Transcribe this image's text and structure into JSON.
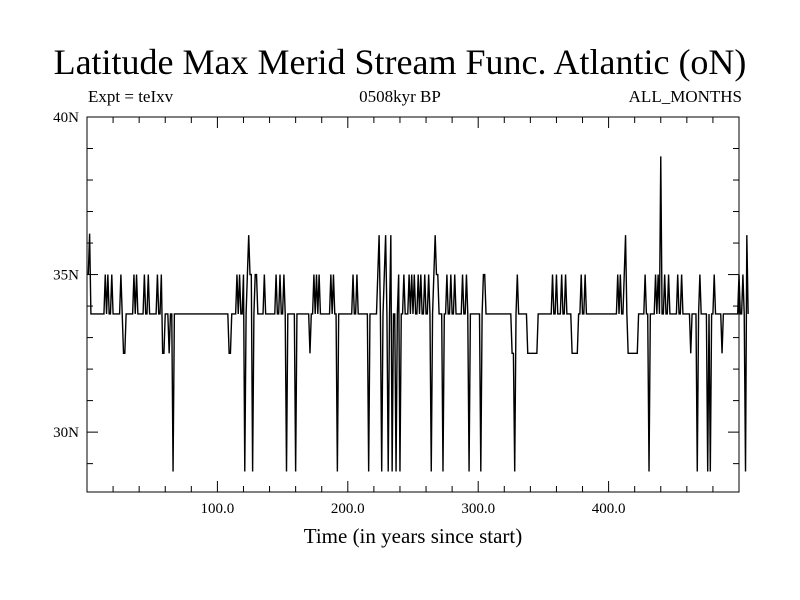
{
  "chart_data": {
    "type": "line",
    "title": "Latitude Max Merid Stream Func. Atlantic (oN)",
    "subtitle_left": "Expt = teIxv",
    "subtitle_center": "0508kyr BP",
    "subtitle_right": "ALL_MONTHS",
    "xlabel": "Time (in years since start)",
    "ylabel": "",
    "xlim": [
      0,
      500
    ],
    "ylim": [
      28.1,
      40
    ],
    "x_ticks": [
      100,
      200,
      300,
      400
    ],
    "x_tick_labels": [
      "100.0",
      "200.0",
      "300.0",
      "400.0"
    ],
    "y_ticks": [
      30,
      35,
      40
    ],
    "y_tick_labels": [
      "30N",
      "35N",
      "40N"
    ],
    "grid": false,
    "series": [
      {
        "color": "#000000",
        "x0": 1,
        "dx": 1,
        "values": [
          35.0,
          36.3,
          33.75,
          33.75,
          33.75,
          33.75,
          33.75,
          33.75,
          33.75,
          33.75,
          33.75,
          33.75,
          33.75,
          35.0,
          33.75,
          35.0,
          33.75,
          33.75,
          35.0,
          33.75,
          33.75,
          33.75,
          33.75,
          33.75,
          33.75,
          35.0,
          33.75,
          32.5,
          32.5,
          33.75,
          33.75,
          33.75,
          33.75,
          33.75,
          33.75,
          35.0,
          33.75,
          35.0,
          33.75,
          33.75,
          33.75,
          33.75,
          33.75,
          35.0,
          33.75,
          33.75,
          35.0,
          33.75,
          33.75,
          33.75,
          33.75,
          33.75,
          33.75,
          35.0,
          33.75,
          33.75,
          35.0,
          32.5,
          32.5,
          33.75,
          33.75,
          33.75,
          32.5,
          33.75,
          33.75,
          28.75,
          33.75,
          33.75,
          33.75,
          33.75,
          33.75,
          33.75,
          33.75,
          33.75,
          33.75,
          33.75,
          33.75,
          33.75,
          33.75,
          33.75,
          33.75,
          33.75,
          33.75,
          33.75,
          33.75,
          33.75,
          33.75,
          33.75,
          33.75,
          33.75,
          33.75,
          33.75,
          33.75,
          33.75,
          33.75,
          33.75,
          33.75,
          33.75,
          33.75,
          33.75,
          33.75,
          33.75,
          33.75,
          33.75,
          33.75,
          33.75,
          33.75,
          33.75,
          32.5,
          32.5,
          33.75,
          33.75,
          33.75,
          33.75,
          35.0,
          33.75,
          35.0,
          33.75,
          33.75,
          35.0,
          28.75,
          33.75,
          35.0,
          36.25,
          35.0,
          35.0,
          28.75,
          33.75,
          35.0,
          35.0,
          33.75,
          33.75,
          33.75,
          33.75,
          33.75,
          35.0,
          33.75,
          33.75,
          33.75,
          33.75,
          33.75,
          33.75,
          33.75,
          33.75,
          35.0,
          33.75,
          33.75,
          35.0,
          33.75,
          33.75,
          35.0,
          33.75,
          28.75,
          33.75,
          33.75,
          33.75,
          33.75,
          33.75,
          33.75,
          28.75,
          33.75,
          33.75,
          33.75,
          33.75,
          33.75,
          33.75,
          33.75,
          33.75,
          33.75,
          33.75,
          32.5,
          33.75,
          33.75,
          35.0,
          33.75,
          35.0,
          33.75,
          35.0,
          33.75,
          33.75,
          33.75,
          33.75,
          33.75,
          33.75,
          33.75,
          33.75,
          35.0,
          33.75,
          35.0,
          33.75,
          33.75,
          28.75,
          33.75,
          33.75,
          33.75,
          33.75,
          33.75,
          33.75,
          33.75,
          33.75,
          33.75,
          33.75,
          33.75,
          35.0,
          33.75,
          33.75,
          35.0,
          33.75,
          33.75,
          33.75,
          33.75,
          33.75,
          33.75,
          33.75,
          33.75,
          28.75,
          33.75,
          33.75,
          33.75,
          33.75,
          33.75,
          33.75,
          35.0,
          36.25,
          33.75,
          28.75,
          33.75,
          35.0,
          36.25,
          33.75,
          28.75,
          33.75,
          36.25,
          28.75,
          33.75,
          33.75,
          28.75,
          33.75,
          35.0,
          28.75,
          33.75,
          33.75,
          35.0,
          33.75,
          33.75,
          33.75,
          35.0,
          33.75,
          35.0,
          33.75,
          35.0,
          33.75,
          33.75,
          35.0,
          33.75,
          35.0,
          33.75,
          33.75,
          35.0,
          33.75,
          33.75,
          35.0,
          33.75,
          28.75,
          33.75,
          35.0,
          36.25,
          35.0,
          35.0,
          33.75,
          33.75,
          33.75,
          28.75,
          33.75,
          33.75,
          35.0,
          33.75,
          33.75,
          35.0,
          33.75,
          33.75,
          35.0,
          33.75,
          33.75,
          33.75,
          33.75,
          33.75,
          35.0,
          33.75,
          33.75,
          35.0,
          33.75,
          28.75,
          33.75,
          33.75,
          33.75,
          33.75,
          33.75,
          33.75,
          33.75,
          33.75,
          28.75,
          33.75,
          35.0,
          35.0,
          33.75,
          33.75,
          33.75,
          33.75,
          33.75,
          33.75,
          33.75,
          33.75,
          33.75,
          33.75,
          33.75,
          33.75,
          33.75,
          33.75,
          33.75,
          33.75,
          33.75,
          33.75,
          33.75,
          33.75,
          32.5,
          32.5,
          28.75,
          33.75,
          35.0,
          33.75,
          33.75,
          33.75,
          33.75,
          33.75,
          33.75,
          33.75,
          32.5,
          32.5,
          32.5,
          32.5,
          32.5,
          32.5,
          32.5,
          32.5,
          33.75,
          33.75,
          33.75,
          33.75,
          33.75,
          33.75,
          33.75,
          33.75,
          33.75,
          33.75,
          33.75,
          35.0,
          33.75,
          33.75,
          35.0,
          33.75,
          33.75,
          33.75,
          35.0,
          33.75,
          33.75,
          35.0,
          33.75,
          33.75,
          33.75,
          33.75,
          32.5,
          32.5,
          32.5,
          32.5,
          32.5,
          33.75,
          33.75,
          35.0,
          33.75,
          33.75,
          35.0,
          33.75,
          33.75,
          33.75,
          33.75,
          33.75,
          33.75,
          33.75,
          33.75,
          33.75,
          33.75,
          33.75,
          33.75,
          33.75,
          33.75,
          33.75,
          33.75,
          33.75,
          33.75,
          33.75,
          33.75,
          33.75,
          33.75,
          33.75,
          33.75,
          35.0,
          33.75,
          35.0,
          33.75,
          33.75,
          35.0,
          36.25,
          33.75,
          32.5,
          32.5,
          32.5,
          32.5,
          32.5,
          32.5,
          32.5,
          32.5,
          33.75,
          33.75,
          33.75,
          33.75,
          33.75,
          35.0,
          33.75,
          33.75,
          28.75,
          33.75,
          33.75,
          33.75,
          33.75,
          35.0,
          33.75,
          35.0,
          33.75,
          38.75,
          33.75,
          33.75,
          35.0,
          33.75,
          33.75,
          35.0,
          33.75,
          33.75,
          33.75,
          33.75,
          33.75,
          33.75,
          35.0,
          33.75,
          33.75,
          35.0,
          33.75,
          33.75,
          33.75,
          33.75,
          33.75,
          33.75,
          32.5,
          33.75,
          33.75,
          33.75,
          33.75,
          28.75,
          33.75,
          35.0,
          33.75,
          33.75,
          33.75,
          33.75,
          33.75,
          28.75,
          33.75,
          28.75,
          33.75,
          33.75,
          35.0,
          33.75,
          33.75,
          33.75,
          33.75,
          33.75,
          32.5,
          33.75,
          33.75,
          33.75,
          33.75,
          33.75,
          33.75,
          33.75,
          33.75,
          33.75,
          33.75,
          33.75,
          33.75,
          35.0,
          33.75,
          33.75,
          35.0,
          33.75,
          28.75,
          36.25,
          33.75
        ]
      }
    ]
  }
}
